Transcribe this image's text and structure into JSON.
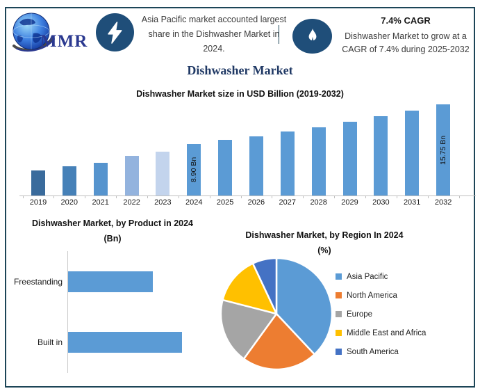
{
  "header": {
    "logo_text": "MMR",
    "logo_icon": "globe-icon",
    "left_badge_icon": "lightning-bolt-icon",
    "right_badge_icon": "flame-icon",
    "highlight_text": "Asia Pacific market accounted largest share in the Dishwasher Market in 2024.",
    "cagr_title": "7.4% CAGR",
    "cagr_line1": "Dishwasher Market to grow at a",
    "cagr_line2": "CAGR of 7.4% during 2025-2032"
  },
  "page_title": "Dishwasher Market",
  "colors": {
    "frame_border": "#1c4557",
    "badge_blue": "#1f4e79",
    "title_navy": "#1f3864",
    "primary_bar_blue": "#5b9bd5"
  },
  "chart_data": [
    {
      "type": "bar",
      "title": "Dishwasher Market size in USD Billion (2019-2032)",
      "categories": [
        "2019",
        "2020",
        "2021",
        "2022",
        "2023",
        "2024",
        "2025",
        "2026",
        "2027",
        "2028",
        "2029",
        "2030",
        "2031",
        "2032"
      ],
      "values": [
        4.3,
        5.0,
        5.7,
        6.8,
        7.6,
        8.9,
        9.56,
        10.27,
        11.03,
        11.84,
        12.72,
        13.66,
        14.67,
        15.75
      ],
      "bar_colors": [
        "#3a6b9c",
        "#4681b8",
        "#5694ce",
        "#93b3de",
        "#c3d4ed",
        "#5b9bd5",
        "#5b9bd5",
        "#5b9bd5",
        "#5b9bd5",
        "#5b9bd5",
        "#5b9bd5",
        "#5b9bd5",
        "#5b9bd5",
        "#5b9bd5"
      ],
      "value_labels": [
        {
          "index": 5,
          "text": "8.90 Bn"
        },
        {
          "index": 13,
          "text": "15.75 Bn"
        }
      ],
      "ylabel": "USD Billion",
      "ylim": [
        0,
        15.75
      ],
      "grid": false,
      "legend": "none"
    },
    {
      "type": "bar",
      "orientation": "horizontal",
      "title": "Dishwasher Market, by Product in 2024",
      "subtitle": "(Bn)",
      "categories": [
        "Freestanding",
        "Built in"
      ],
      "values": [
        3.8,
        5.1
      ],
      "bar_color": "#5b9bd5",
      "grid": false,
      "legend": "none"
    },
    {
      "type": "pie",
      "title": "Dishwasher Market, by Region In 2024",
      "subtitle": "(%)",
      "start_angle_deg": 0,
      "direction": "clockwise",
      "legend_position": "right",
      "slices": [
        {
          "label": "Asia Pacific",
          "value": 38,
          "color": "#5b9bd5"
        },
        {
          "label": "North America",
          "value": 22,
          "color": "#ed7d31"
        },
        {
          "label": "Europe",
          "value": 19,
          "color": "#a5a5a5"
        },
        {
          "label": "Middle East and Africa",
          "value": 14,
          "color": "#ffc000"
        },
        {
          "label": "South America",
          "value": 7,
          "color": "#4472c4"
        }
      ]
    }
  ]
}
